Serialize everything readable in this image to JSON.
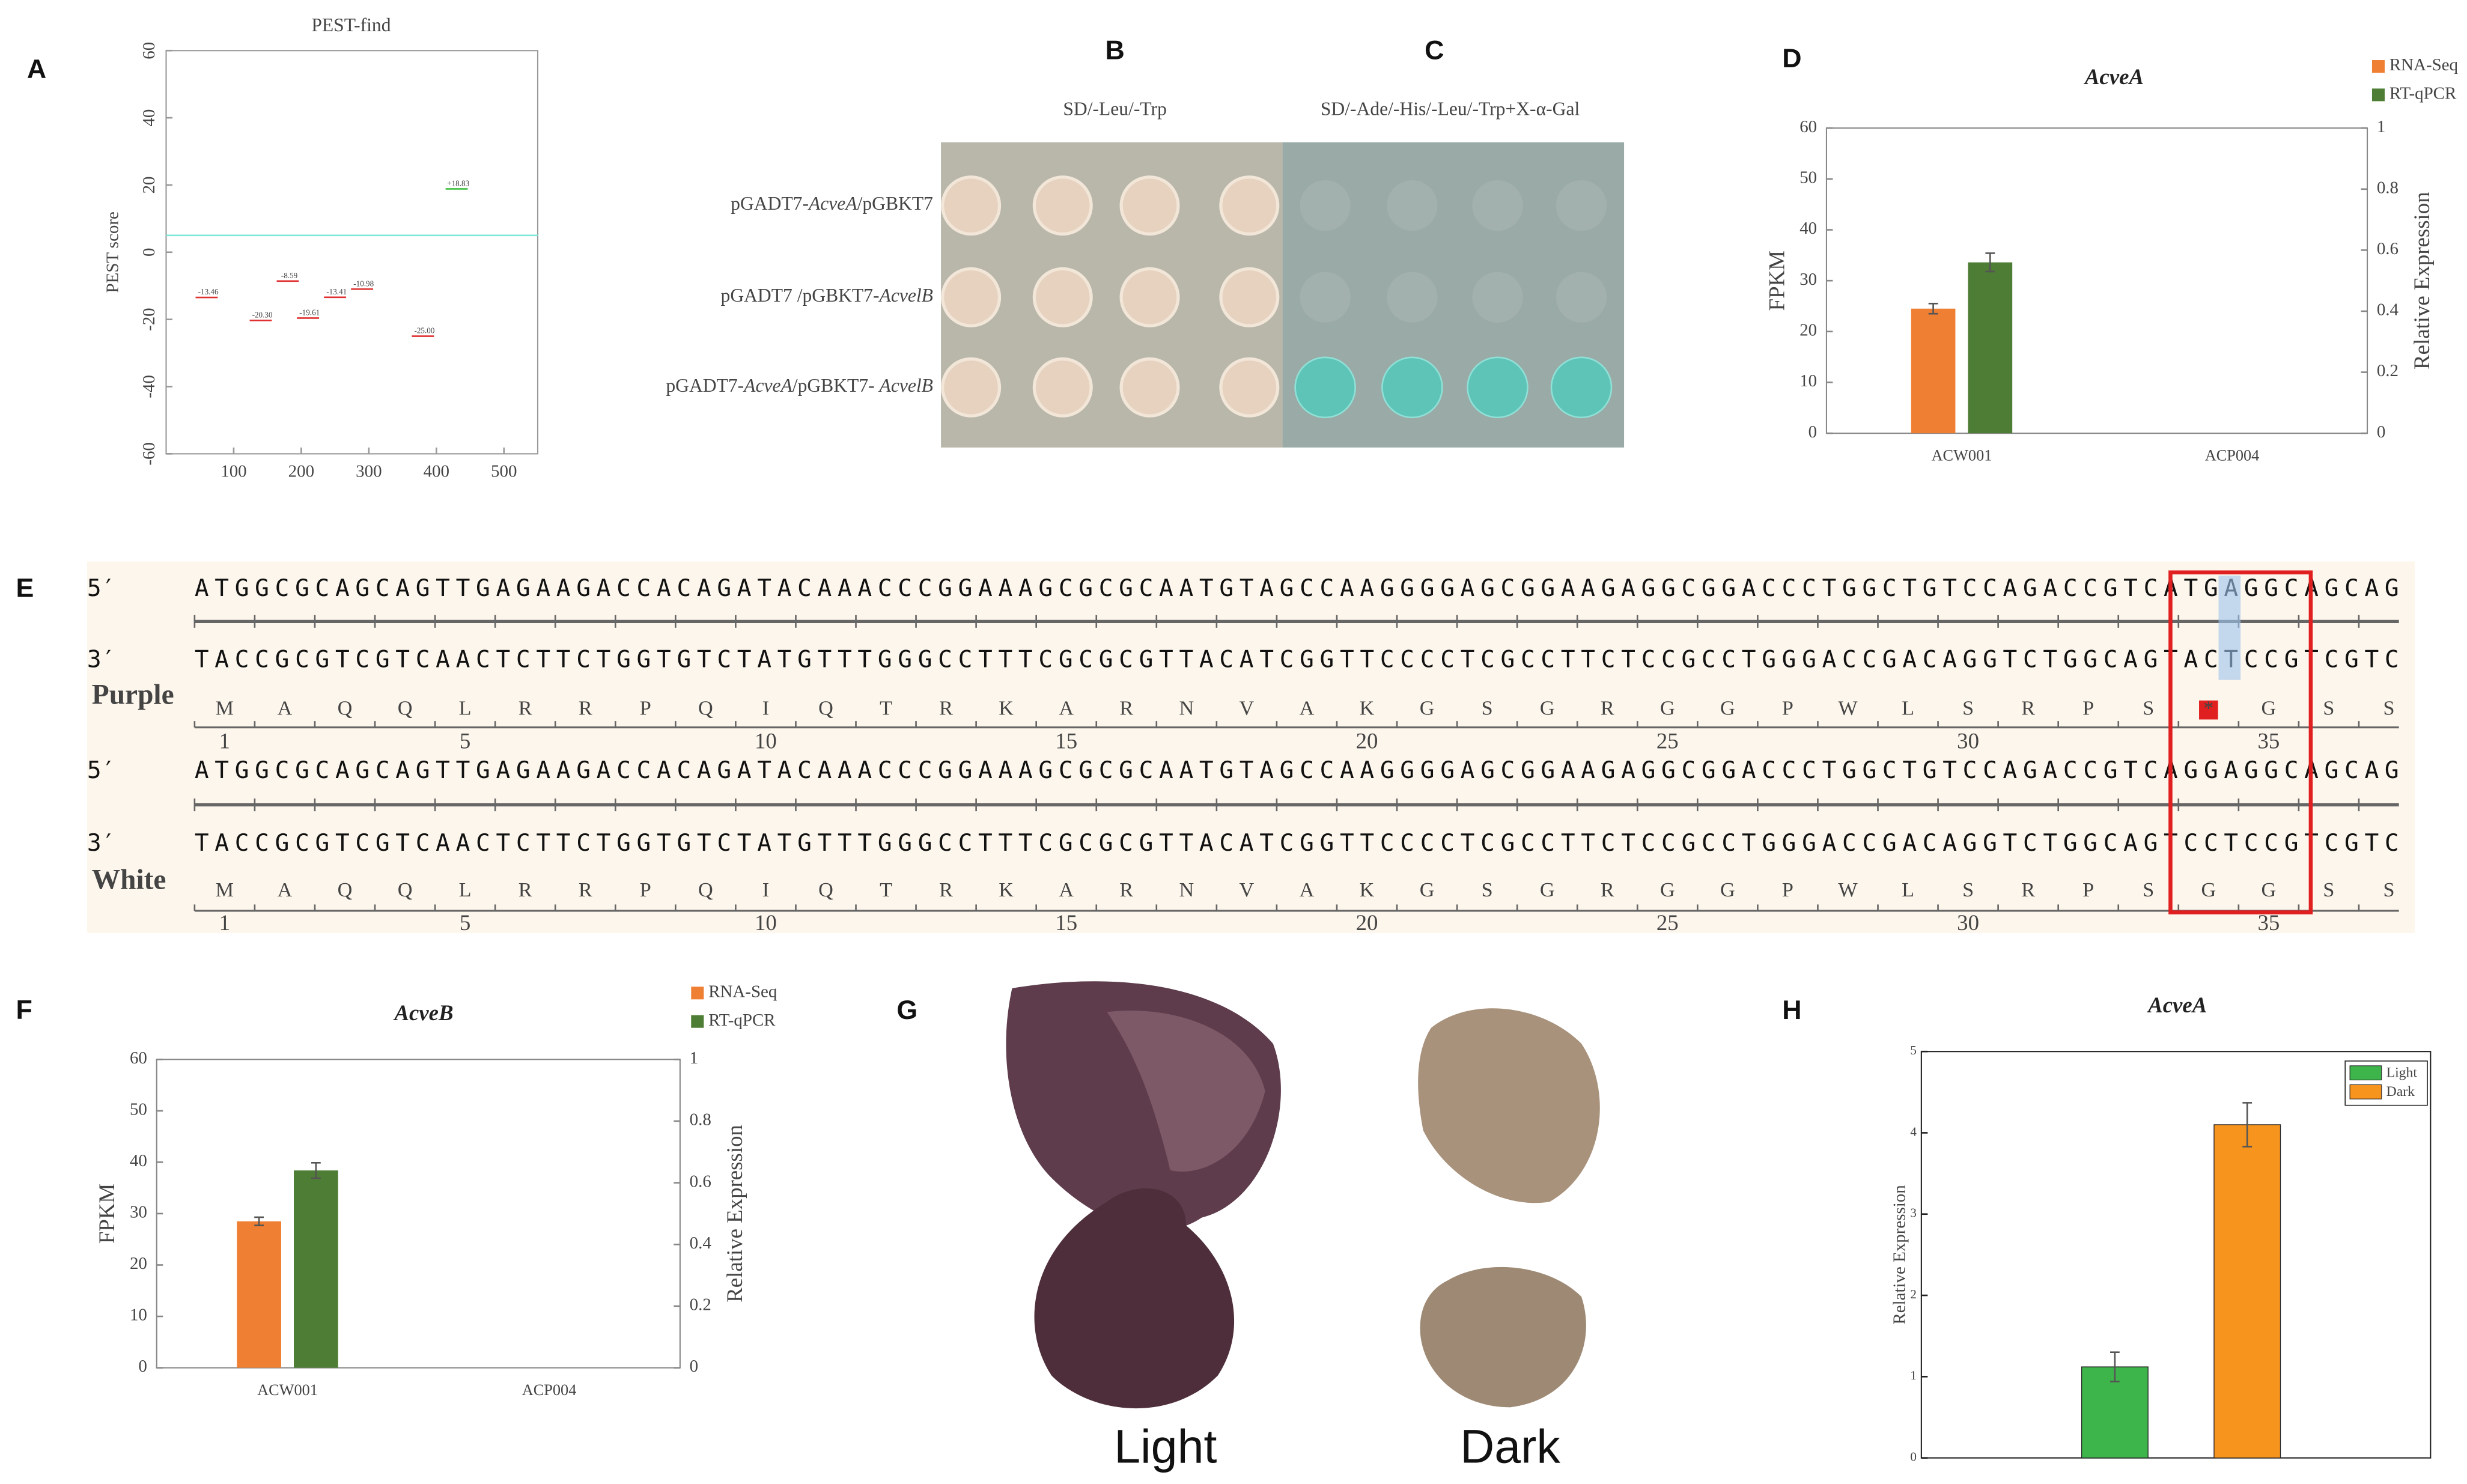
{
  "chart_data": [
    {
      "panel_label": "A",
      "type": "scatter",
      "title": "PEST-find",
      "y_label": "PEST score",
      "xlim": [
        0,
        550
      ],
      "ylim": [
        -60,
        60
      ],
      "xticks": [
        100,
        200,
        300,
        400,
        500
      ],
      "yticks": [
        -60,
        -40,
        -20,
        0,
        20,
        40,
        60
      ],
      "threshold": 5,
      "threshold_color": "#7fe8d8",
      "x": [
        60,
        140,
        180,
        210,
        250,
        290,
        380,
        430
      ],
      "values": [
        -13.46,
        -20.3,
        -8.59,
        -19.61,
        -13.41,
        -10.98,
        -25.0,
        18.83
      ],
      "value_labels": [
        "-13.46",
        "-20.30",
        "-8.59",
        "-19.61",
        "-13.41",
        "-10.98",
        "-25.00",
        "+18.83"
      ],
      "colors": [
        "#e03030",
        "#e03030",
        "#e03030",
        "#e03030",
        "#e03030",
        "#e03030",
        "#e03030",
        "#40c040"
      ]
    },
    {
      "panel_label": "D",
      "type": "dual_bar",
      "title": "AcveA",
      "categories": [
        "ACW001",
        "ACP004"
      ],
      "y_label": "FPKM",
      "y2_label": "Relative Expression",
      "ylim": [
        0,
        60
      ],
      "yticks": [
        0,
        10,
        20,
        30,
        40,
        50,
        60
      ],
      "y2lim": [
        0,
        1
      ],
      "y2ticks": [
        0,
        0.2,
        0.4,
        0.6,
        0.8,
        1
      ],
      "series": [
        {
          "name": "RNA-Seq",
          "color": "#ef7f33",
          "values": [
            24.5,
            null
          ],
          "errors": [
            1.0,
            null
          ]
        },
        {
          "name": "RT-qPCR",
          "color": "#4e7d35",
          "axis": "y2",
          "values": [
            0.56,
            null
          ],
          "errors": [
            0.03,
            null
          ]
        }
      ]
    },
    {
      "panel_label": "F",
      "type": "dual_bar",
      "title": "AcveB",
      "categories": [
        "ACW001",
        "ACP004"
      ],
      "y_label": "FPKM",
      "y2_label": "Relative Expression",
      "ylim": [
        0,
        60
      ],
      "yticks": [
        0,
        10,
        20,
        30,
        40,
        50,
        60
      ],
      "y2lim": [
        0,
        1
      ],
      "y2ticks": [
        0,
        0.2,
        0.4,
        0.6,
        0.8,
        1
      ],
      "series": [
        {
          "name": "RNA-Seq",
          "color": "#ef7f33",
          "values": [
            28.5,
            null
          ],
          "errors": [
            0.8,
            null
          ]
        },
        {
          "name": "RT-qPCR",
          "color": "#4e7d35",
          "axis": "y2",
          "values": [
            0.64,
            null
          ],
          "errors": [
            0.025,
            null
          ]
        }
      ]
    },
    {
      "panel_label": "H",
      "type": "bar",
      "title": "AcveA",
      "y_label": "Relative Expression",
      "ylim": [
        0,
        5
      ],
      "yticks": [
        0,
        1,
        2,
        3,
        4,
        5
      ],
      "legend": "upper right",
      "series": [
        {
          "name": "Light",
          "color": "#3db54a",
          "values": [
            1.12
          ],
          "errors": [
            0.18
          ]
        },
        {
          "name": "Dark",
          "color": "#f7941d",
          "values": [
            4.1
          ],
          "errors": [
            0.27
          ]
        }
      ]
    }
  ],
  "yeast_assay": {
    "panel_labels": [
      "B",
      "C"
    ],
    "media": [
      "SD/-Leu/-Trp",
      "SD/-Ade/-His/-Leu/-Trp+X-α-Gal"
    ],
    "constructs": [
      [
        "pGADT7-",
        "AcveA",
        "/pGBKT7"
      ],
      [
        "pGADT7 /pGBKT7-",
        "AcvelB"
      ],
      [
        "pGADT7-",
        "AcveA",
        "/pGBKT7- ",
        "AcvelB"
      ]
    ]
  },
  "sequence_alignment": {
    "panel_label": "E",
    "strand_labels": [
      "5′",
      "3′"
    ],
    "positions": [
      1,
      5,
      10,
      15,
      20,
      25,
      30,
      35
    ],
    "rows": [
      {
        "name": "Purple",
        "top": "ATGGCGCAGCAGTTGAGAAGACCACAGATACAAACCCGGAAAGCGCGCAATGTAGCCAAGGGGAGCGGAAGAGGCGGACCCTGGCTGTCCAGACCGTCATGAGGCAGCAG",
        "bottom": "TACCGCGTCGTCAACTCTTCTGGTGTCTATGTTTGGGCCTTTCGCGCGTTACATCGGTTCCCCTCGCCTTCTCCGCCTGGGACCGACAGGTCTGGCAGTACTCCGTCGTC",
        "amino_acids": [
          "M",
          "A",
          "Q",
          "Q",
          "L",
          "R",
          "R",
          "P",
          "Q",
          "I",
          "Q",
          "T",
          "R",
          "K",
          "A",
          "R",
          "N",
          "V",
          "A",
          "K",
          "G",
          "S",
          "G",
          "R",
          "G",
          "G",
          "P",
          "W",
          "L",
          "S",
          "R",
          "P",
          "S",
          "*",
          "G",
          "S",
          "S"
        ]
      },
      {
        "name": "White",
        "top": "ATGGCGCAGCAGTTGAGAAGACCACAGATACAAACCCGGAAAGCGCGCAATGTAGCCAAGGGGAGCGGAAGAGGCGGACCCTGGCTGTCCAGACCGTCAGGAGGCAGCAG",
        "bottom": "TACCGCGTCGTCAACTCTTCTGGTGTCTATGTTTGGGCCTTTCGCGCGTTACATCGGTTCCCCTCGCCTTCTCCGCCTGGGACCGACAGGTCTGGCAGTCCTCCGTCGTC",
        "amino_acids": [
          "M",
          "A",
          "Q",
          "Q",
          "L",
          "R",
          "R",
          "P",
          "Q",
          "I",
          "Q",
          "T",
          "R",
          "K",
          "A",
          "R",
          "N",
          "V",
          "A",
          "K",
          "G",
          "S",
          "G",
          "R",
          "G",
          "G",
          "P",
          "W",
          "L",
          "S",
          "R",
          "P",
          "S",
          "G",
          "G",
          "S",
          "S"
        ]
      }
    ]
  },
  "photos": {
    "panel_label": "G",
    "captions": [
      "Light",
      "Dark"
    ]
  }
}
